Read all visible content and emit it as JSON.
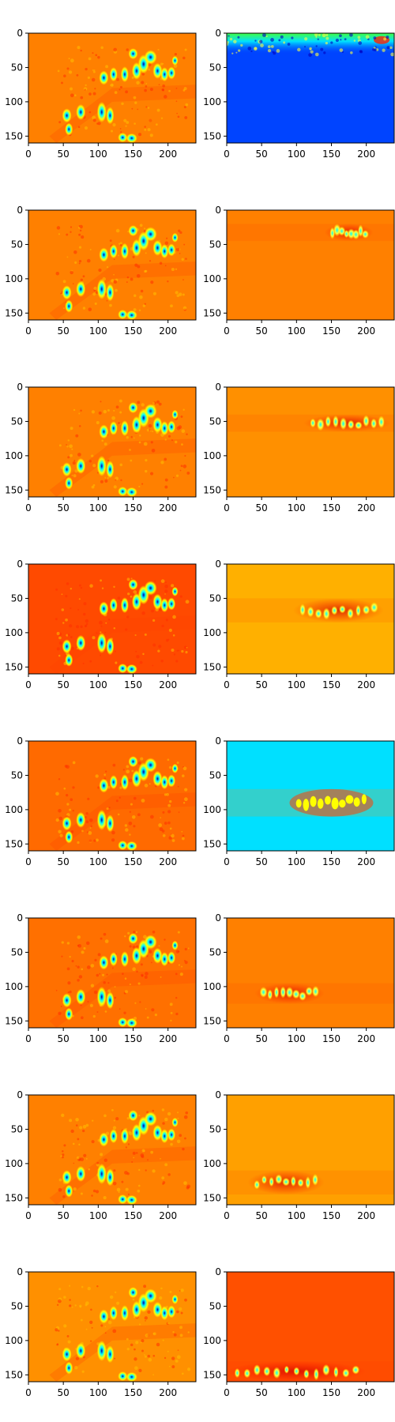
{
  "chart_data": {
    "type": "heatmap",
    "layout": {
      "rows": 8,
      "columns": 2
    },
    "colormap": [
      "#00007f",
      "#0000ff",
      "#0080ff",
      "#00ffff",
      "#80ff80",
      "#ffff00",
      "#ff8000",
      "#ff0000",
      "#7f0000"
    ],
    "xlim": [
      0,
      240
    ],
    "ylim": [
      160,
      0
    ],
    "xticks": [
      0,
      50,
      100,
      150,
      200
    ],
    "yticks": [
      0,
      50,
      100,
      150
    ],
    "grid": false,
    "legend": "none",
    "left_panels": [
      {
        "row": 1,
        "background": "#ff8000"
      },
      {
        "row": 2,
        "background": "#ff8000"
      },
      {
        "row": 3,
        "background": "#ff8000"
      },
      {
        "row": 4,
        "background": "#ff4a00"
      },
      {
        "row": 5,
        "background": "#ff6a00"
      },
      {
        "row": 6,
        "background": "#ff7000"
      },
      {
        "row": 7,
        "background": "#ff8000"
      },
      {
        "row": 8,
        "background": "#ff9000"
      }
    ],
    "right_panels": [
      {
        "row": 1,
        "background": "#0044ff",
        "activity_band_y": [
          0,
          20
        ],
        "activity_x": [
          0,
          240
        ]
      },
      {
        "row": 2,
        "background": "#ff8000",
        "activity_band_y": [
          20,
          45
        ],
        "activity_x": [
          140,
          210
        ]
      },
      {
        "row": 3,
        "background": "#ff9000",
        "activity_band_y": [
          40,
          65
        ],
        "activity_x": [
          110,
          235
        ]
      },
      {
        "row": 4,
        "background": "#ffb000",
        "activity_band_y": [
          50,
          85
        ],
        "activity_x": [
          95,
          225
        ]
      },
      {
        "row": 5,
        "background": "#00e0ff",
        "activity_band_y": [
          70,
          110
        ],
        "activity_x": [
          90,
          210
        ]
      },
      {
        "row": 6,
        "background": "#ff8000",
        "activity_band_y": [
          95,
          125
        ],
        "activity_x": [
          40,
          140
        ]
      },
      {
        "row": 7,
        "background": "#ffa000",
        "activity_band_y": [
          110,
          145
        ],
        "activity_x": [
          30,
          140
        ]
      },
      {
        "row": 8,
        "background": "#ff5000",
        "activity_band_y": [
          130,
          160
        ],
        "activity_x": [
          0,
          200
        ]
      }
    ]
  }
}
